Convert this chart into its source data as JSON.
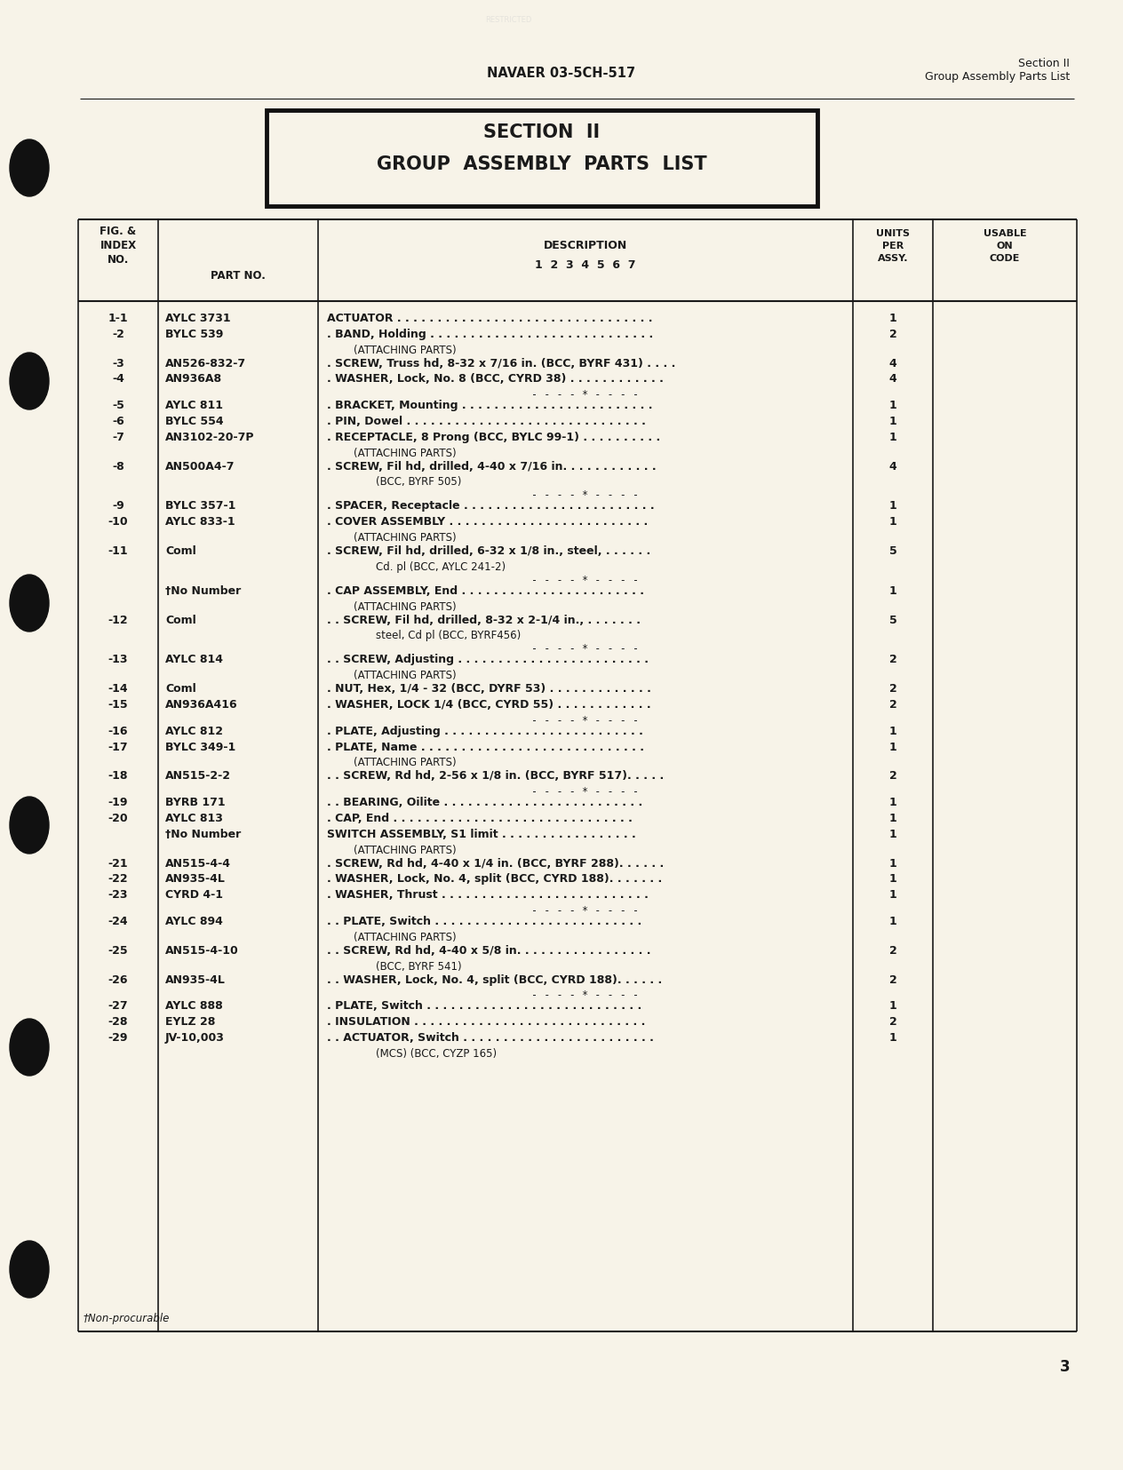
{
  "bg_color": "#f7f3e8",
  "page_number": "3",
  "header_center": "NAVAER 03-5CH-517",
  "header_right_line1": "Section II",
  "header_right_line2": "Group Assembly Parts List",
  "section_title_line1": "SECTION  II",
  "section_title_line2": "GROUP  ASSEMBLY  PARTS  LIST",
  "rows": [
    {
      "fig": "1-1",
      "part": "AYLC 3731",
      "desc": "ACTUATOR . . . . . . . . . . . . . . . . . . . . . . . . . . . . . . . .",
      "units": "1",
      "type": "normal"
    },
    {
      "fig": "-2",
      "part": "BYLC 539",
      "desc": ". BAND, Holding . . . . . . . . . . . . . . . . . . . . . . . . . . . .",
      "units": "2",
      "type": "normal"
    },
    {
      "fig": "",
      "part": "",
      "desc": "(ATTACHING PARTS)",
      "units": "",
      "type": "attaching"
    },
    {
      "fig": "-3",
      "part": "AN526-832-7",
      "desc": ". SCREW, Truss hd, 8-32 x 7/16 in. (BCC, BYRF 431) . . . .",
      "units": "4",
      "type": "normal"
    },
    {
      "fig": "-4",
      "part": "AN936A8",
      "desc": ". WASHER, Lock, No. 8 (BCC, CYRD 38) . . . . . . . . . . . .",
      "units": "4",
      "type": "normal"
    },
    {
      "fig": "",
      "part": "",
      "desc": "-----*-----",
      "units": "",
      "type": "separator"
    },
    {
      "fig": "-5",
      "part": "AYLC 811",
      "desc": ". BRACKET, Mounting . . . . . . . . . . . . . . . . . . . . . . . .",
      "units": "1",
      "type": "normal"
    },
    {
      "fig": "-6",
      "part": "BYLC 554",
      "desc": ". PIN, Dowel . . . . . . . . . . . . . . . . . . . . . . . . . . . . . .",
      "units": "1",
      "type": "normal"
    },
    {
      "fig": "-7",
      "part": "AN3102-20-7P",
      "desc": ". RECEPTACLE, 8 Prong (BCC, BYLC 99-1) . . . . . . . . . .",
      "units": "1",
      "type": "normal"
    },
    {
      "fig": "",
      "part": "",
      "desc": "(ATTACHING PARTS)",
      "units": "",
      "type": "attaching"
    },
    {
      "fig": "-8",
      "part": "AN500A4-7",
      "desc": ". SCREW, Fil hd, drilled, 4-40 x 7/16 in. . . . . . . . . . . .",
      "units": "4",
      "type": "normal"
    },
    {
      "fig": "",
      "part": "",
      "desc": "(BCC, BYRF 505)",
      "units": "",
      "type": "continuation"
    },
    {
      "fig": "",
      "part": "",
      "desc": "-----*-----",
      "units": "",
      "type": "separator"
    },
    {
      "fig": "-9",
      "part": "BYLC 357-1",
      "desc": ". SPACER, Receptacle . . . . . . . . . . . . . . . . . . . . . . . .",
      "units": "1",
      "type": "normal"
    },
    {
      "fig": "-10",
      "part": "AYLC 833-1",
      "desc": ". COVER ASSEMBLY . . . . . . . . . . . . . . . . . . . . . . . . .",
      "units": "1",
      "type": "normal"
    },
    {
      "fig": "",
      "part": "",
      "desc": "(ATTACHING PARTS)",
      "units": "",
      "type": "attaching"
    },
    {
      "fig": "-11",
      "part": "Coml",
      "desc": ". SCREW, Fil hd, drilled, 6-32 x 1/8 in., steel, . . . . . .",
      "units": "5",
      "type": "normal"
    },
    {
      "fig": "",
      "part": "",
      "desc": "Cd. pl (BCC, AYLC 241-2)",
      "units": "",
      "type": "continuation2"
    },
    {
      "fig": "",
      "part": "",
      "desc": "-----*-----",
      "units": "",
      "type": "separator"
    },
    {
      "fig": "",
      "part": "†No Number",
      "desc": ". CAP ASSEMBLY, End . . . . . . . . . . . . . . . . . . . . . . .",
      "units": "1",
      "type": "normal"
    },
    {
      "fig": "",
      "part": "",
      "desc": "(ATTACHING PARTS)",
      "units": "",
      "type": "attaching"
    },
    {
      "fig": "-12",
      "part": "Coml",
      "desc": ". . SCREW, Fil hd, drilled, 8-32 x 2-1/4 in., . . . . . . .",
      "units": "5",
      "type": "normal"
    },
    {
      "fig": "",
      "part": "",
      "desc": "steel, Cd pl (BCC, BYRF456)",
      "units": "",
      "type": "continuation2"
    },
    {
      "fig": "",
      "part": "",
      "desc": "-----*-----",
      "units": "",
      "type": "separator"
    },
    {
      "fig": "-13",
      "part": "AYLC 814",
      "desc": ". . SCREW, Adjusting . . . . . . . . . . . . . . . . . . . . . . . .",
      "units": "2",
      "type": "normal"
    },
    {
      "fig": "",
      "part": "",
      "desc": "(ATTACHING PARTS)",
      "units": "",
      "type": "attaching"
    },
    {
      "fig": "-14",
      "part": "Coml",
      "desc": ". NUT, Hex, 1/4 - 32 (BCC, DYRF 53) . . . . . . . . . . . . .",
      "units": "2",
      "type": "normal"
    },
    {
      "fig": "-15",
      "part": "AN936A416",
      "desc": ". WASHER, LOCK 1/4 (BCC, CYRD 55) . . . . . . . . . . . .",
      "units": "2",
      "type": "normal"
    },
    {
      "fig": "",
      "part": "",
      "desc": "-----*-----",
      "units": "",
      "type": "separator"
    },
    {
      "fig": "-16",
      "part": "AYLC 812",
      "desc": ". PLATE, Adjusting . . . . . . . . . . . . . . . . . . . . . . . . .",
      "units": "1",
      "type": "normal"
    },
    {
      "fig": "-17",
      "part": "BYLC 349-1",
      "desc": ". PLATE, Name . . . . . . . . . . . . . . . . . . . . . . . . . . . .",
      "units": "1",
      "type": "normal"
    },
    {
      "fig": "",
      "part": "",
      "desc": "(ATTACHING PARTS)",
      "units": "",
      "type": "attaching"
    },
    {
      "fig": "-18",
      "part": "AN515-2-2",
      "desc": ". . SCREW, Rd hd, 2-56 x 1/8 in. (BCC, BYRF 517). . . . .",
      "units": "2",
      "type": "normal"
    },
    {
      "fig": "",
      "part": "",
      "desc": "-----*-----",
      "units": "",
      "type": "separator"
    },
    {
      "fig": "-19",
      "part": "BYRB 171",
      "desc": ". . BEARING, Oilite . . . . . . . . . . . . . . . . . . . . . . . . .",
      "units": "1",
      "type": "normal"
    },
    {
      "fig": "-20",
      "part": "AYLC 813",
      "desc": ". CAP, End . . . . . . . . . . . . . . . . . . . . . . . . . . . . . .",
      "units": "1",
      "type": "normal"
    },
    {
      "fig": "",
      "part": "†No Number",
      "desc": "SWITCH ASSEMBLY, S1 limit . . . . . . . . . . . . . . . . .",
      "units": "1",
      "type": "normal"
    },
    {
      "fig": "",
      "part": "",
      "desc": "(ATTACHING PARTS)",
      "units": "",
      "type": "attaching"
    },
    {
      "fig": "-21",
      "part": "AN515-4-4",
      "desc": ". SCREW, Rd hd, 4-40 x 1/4 in. (BCC, BYRF 288). . . . . .",
      "units": "1",
      "type": "normal"
    },
    {
      "fig": "-22",
      "part": "AN935-4L",
      "desc": ". WASHER, Lock, No. 4, split (BCC, CYRD 188). . . . . . .",
      "units": "1",
      "type": "normal"
    },
    {
      "fig": "-23",
      "part": "CYRD 4-1",
      "desc": ". WASHER, Thrust . . . . . . . . . . . . . . . . . . . . . . . . . .",
      "units": "1",
      "type": "normal"
    },
    {
      "fig": "",
      "part": "",
      "desc": "-----*-----",
      "units": "",
      "type": "separator"
    },
    {
      "fig": "-24",
      "part": "AYLC 894",
      "desc": ". . PLATE, Switch . . . . . . . . . . . . . . . . . . . . . . . . . .",
      "units": "1",
      "type": "normal"
    },
    {
      "fig": "",
      "part": "",
      "desc": "(ATTACHING PARTS)",
      "units": "",
      "type": "attaching"
    },
    {
      "fig": "-25",
      "part": "AN515-4-10",
      "desc": ". . SCREW, Rd hd, 4-40 x 5/8 in. . . . . . . . . . . . . . . . .",
      "units": "2",
      "type": "normal"
    },
    {
      "fig": "",
      "part": "",
      "desc": "(BCC, BYRF 541)",
      "units": "",
      "type": "continuation"
    },
    {
      "fig": "-26",
      "part": "AN935-4L",
      "desc": ". . WASHER, Lock, No. 4, split (BCC, CYRD 188). . . . . .",
      "units": "2",
      "type": "normal"
    },
    {
      "fig": "",
      "part": "",
      "desc": "-----*-----",
      "units": "",
      "type": "separator"
    },
    {
      "fig": "-27",
      "part": "AYLC 888",
      "desc": ". PLATE, Switch . . . . . . . . . . . . . . . . . . . . . . . . . . .",
      "units": "1",
      "type": "normal"
    },
    {
      "fig": "-28",
      "part": "EYLZ 28",
      "desc": ". INSULATION . . . . . . . . . . . . . . . . . . . . . . . . . . . . .",
      "units": "2",
      "type": "normal"
    },
    {
      "fig": "-29",
      "part": "JV-10,003",
      "desc": ". . ACTUATOR, Switch . . . . . . . . . . . . . . . . . . . . . . . .",
      "units": "1",
      "type": "normal"
    },
    {
      "fig": "",
      "part": "",
      "desc": "(MCS) (BCC, CYZP 165)",
      "units": "",
      "type": "continuation"
    }
  ],
  "footnote": "†Non-procurable",
  "binder_holes_y": [
    190,
    430,
    680,
    930,
    1180,
    1430
  ]
}
